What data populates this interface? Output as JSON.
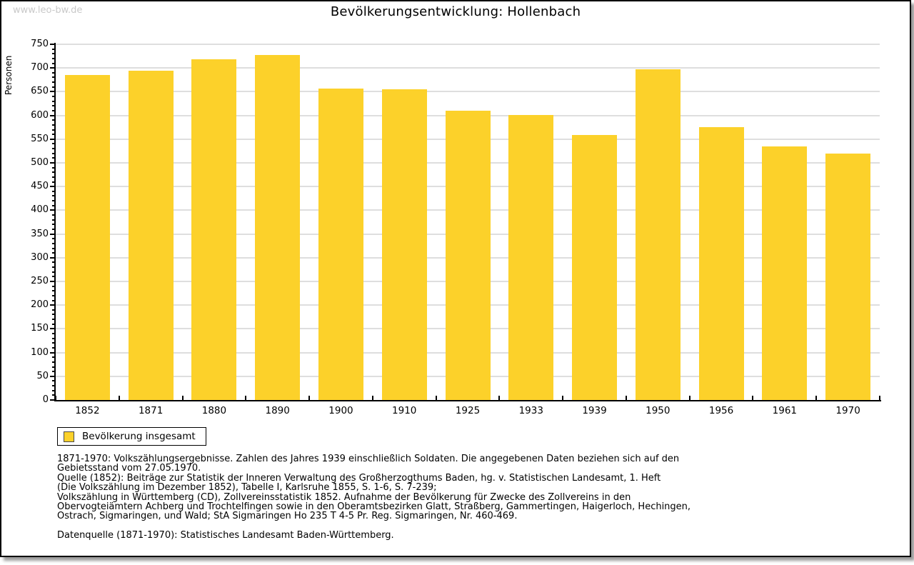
{
  "watermark": "www.leo-bw.de",
  "title": "Bevölkerungsentwicklung: Hollenbach",
  "chart_data": {
    "type": "bar",
    "title": "Bevölkerungsentwicklung: Hollenbach",
    "xlabel": "",
    "ylabel": "Personen",
    "categories": [
      "1852",
      "1871",
      "1880",
      "1890",
      "1900",
      "1910",
      "1925",
      "1933",
      "1939",
      "1950",
      "1956",
      "1961",
      "1970"
    ],
    "values": [
      685,
      694,
      719,
      728,
      657,
      655,
      610,
      601,
      559,
      697,
      576,
      535,
      519
    ],
    "ylim": [
      0,
      750
    ],
    "ytick_step": 50,
    "y_minor_tick_step": 10,
    "grid": true,
    "grid_color": "#dedede",
    "bar_color": "#fcd12a",
    "legend": [
      "Bevölkerung insgesamt"
    ],
    "legend_position": "bottom-left"
  },
  "footer": {
    "lines": [
      "1871-1970: Volkszählungsergebnisse. Zahlen des Jahres 1939 einschließlich Soldaten. Die angegebenen Daten beziehen sich auf den",
      "Gebietsstand vom 27.05.1970.",
      "Quelle (1852): Beiträge zur Statistik der Inneren Verwaltung des Großherzogthums Baden, hg. v. Statistischen Landesamt, 1. Heft",
      "(Die Volkszählung im Dezember 1852), Tabelle I, Karlsruhe 1855, S. 1-6, S. 7-239;",
      "Volkszählung in Württemberg (CD), Zollvereinsstatistik 1852. Aufnahme der Bevölkerung für Zwecke des Zollvereins in den",
      "Obervogteiämtern Achberg und Trochtelfingen sowie in den Oberamtsbezirken Glatt, Straßberg, Gammertingen, Haigerloch, Hechingen,",
      "Ostrach, Sigmaringen, und Wald; StA Sigmaringen Ho 235 T 4-5 Pr. Reg. Sigmaringen, Nr. 460-469."
    ],
    "datasource": "Datenquelle (1871-1970): Statistisches Landesamt Baden-Württemberg."
  },
  "colors": {
    "bar": "#fcd12a",
    "grid": "#dedede",
    "watermark": "#c9c9c9",
    "frame_border": "#000000",
    "shadow": "#9b9b9b"
  }
}
